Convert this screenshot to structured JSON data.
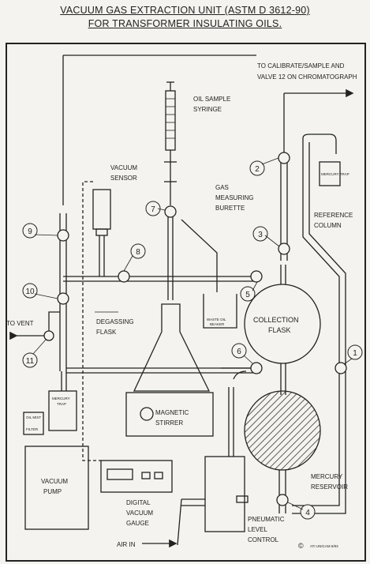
{
  "title": {
    "line1": "VACUUM GAS EXTRACTION UNIT (ASTM D 3612-90)",
    "line2": "FOR TRANSFORMER INSULATING OILS."
  },
  "labels": {
    "calibrate_line1": "TO CALIBRATE/SAMPLE AND",
    "calibrate_line2": "VALVE 12 ON CHROMATOGRAPH",
    "oil_sample_line1": "OIL SAMPLE",
    "oil_sample_line2": "SYRINGE",
    "vacuum_sensor_line1": "VACUUM",
    "vacuum_sensor_line2": "SENSOR",
    "gas_burette_line1": "GAS",
    "gas_burette_line2": "MEASURING",
    "gas_burette_line3": "BURETTE",
    "mercury_trap_small": "MERCURY TRAP",
    "reference_line1": "REFERENCE",
    "reference_line2": "COLUMN",
    "to_vent": "TO VENT",
    "degassing_line1": "DEGASSING",
    "degassing_line2": "FLASK",
    "waste_line1": "WASTE OIL",
    "waste_line2": "BEAKER",
    "collection_line1": "COLLECTION",
    "collection_line2": "FLASK",
    "magnetic_line1": "MAGNETIC",
    "magnetic_line2": "STIRRER",
    "oil_mist": "OIL MIST",
    "filter": "FILTER",
    "mercury_trap_line1": "MERCURY",
    "mercury_trap_line2": "TRAP",
    "vacuum_pump_line1": "VACUUM",
    "vacuum_pump_line2": "PUMP",
    "digital_line1": "DIGITAL",
    "digital_line2": "VACUUM",
    "digital_line3": "GAUGE",
    "mercury_res_line1": "MERCURY",
    "mercury_res_line2": "RESERVOIR",
    "pneumatic_line1": "PNEUMATIC",
    "pneumatic_line2": "LEVEL",
    "pneumatic_line3": "CONTROL",
    "air_in": "AIR IN",
    "copyright": "©",
    "company": "ATI UNICAM 6/93"
  },
  "valves": [
    "1",
    "2",
    "3",
    "4",
    "5",
    "6",
    "7",
    "8",
    "9",
    "10",
    "11"
  ]
}
